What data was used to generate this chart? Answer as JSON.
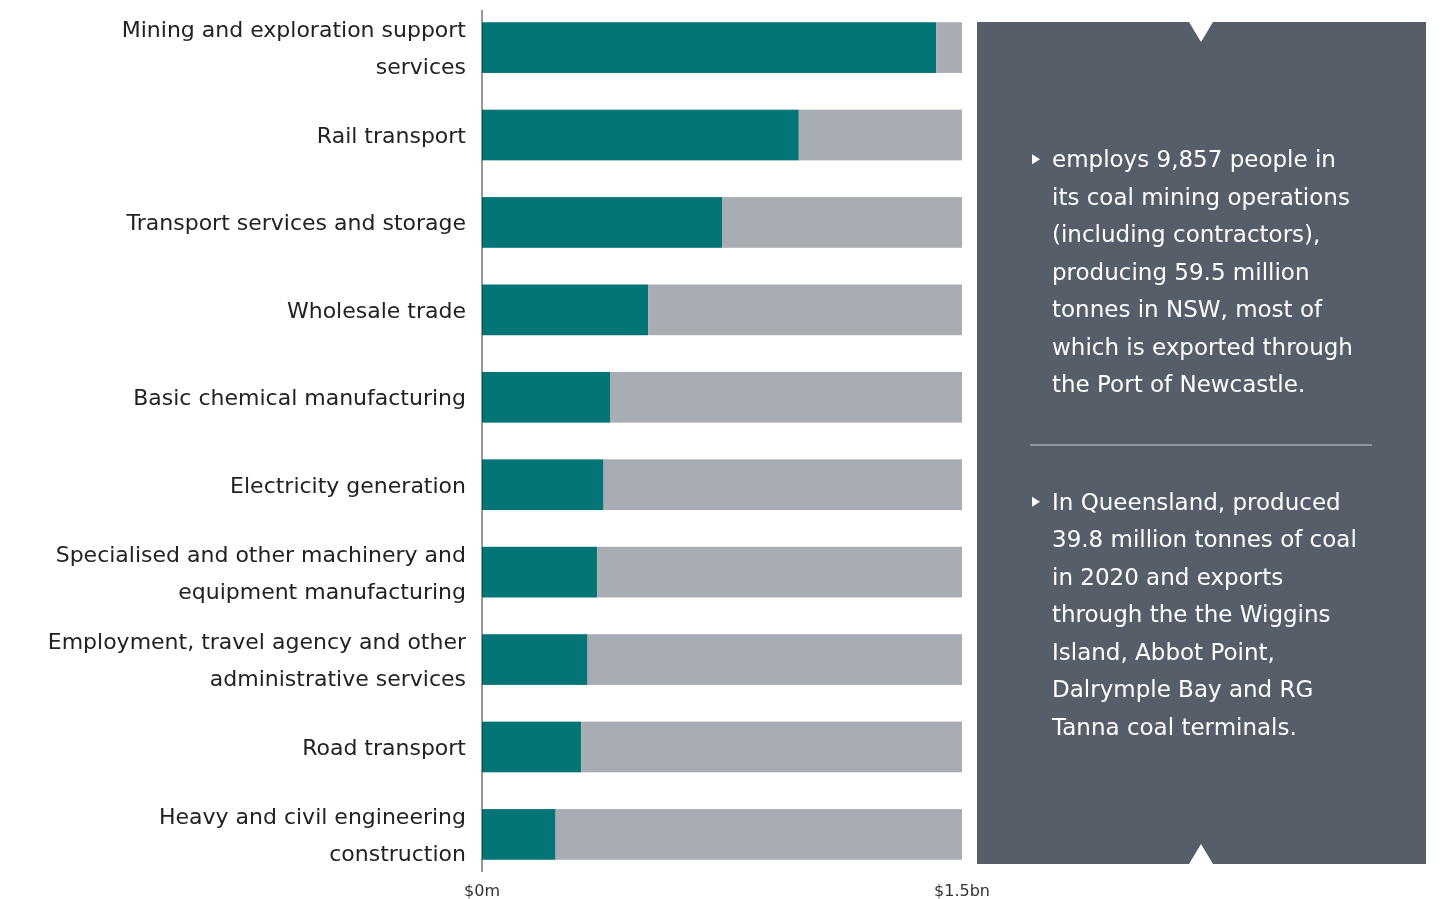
{
  "chart_data": [
    {
      "type": "bar",
      "orientation": "horizontal",
      "stacked": true,
      "categories": [
        "Mining and exploration support services",
        "Rail transport",
        "Transport services and storage",
        "Wholesale trade",
        "Basic chemical manufacturing",
        "Electricity generation",
        "Specialised and other machinery and equipment manufacturing",
        "Employment, travel agency and other administrative services",
        "Road transport",
        "Heavy and civil engineering construction"
      ],
      "series": [
        {
          "color": "#037577",
          "values": [
            1.42,
            0.99,
            0.75,
            0.52,
            0.4,
            0.38,
            0.36,
            0.33,
            0.31,
            0.23
          ]
        },
        {
          "color": "#a7adb3",
          "values": [
            0.08,
            0.51,
            0.75,
            0.98,
            1.1,
            1.12,
            1.14,
            1.17,
            1.19,
            1.27
          ]
        }
      ],
      "xlim": [
        0,
        1.5
      ],
      "xticks": [
        {
          "value": 0,
          "label": "$0m"
        },
        {
          "value": 1.5,
          "label": "$1.5bn"
        }
      ],
      "grid": false
    },
    {
      "type": "other",
      "annotations": [
        "employs 9,857 people in its coal mining operations (including contractors), producing 59.5 million tonnes in NSW, most of which is exported through the Port of Newcastle.",
        "In Queensland, produced 39.8 million tonnes of coal in 2020 and exports through the the Wiggins Island, Abbot Point, Dalrymple Bay and RG Tanna coal terminals."
      ]
    }
  ]
}
